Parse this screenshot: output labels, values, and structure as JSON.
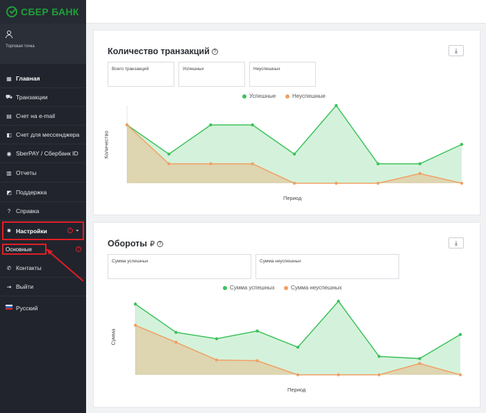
{
  "brand": {
    "logo_text": "СБЕР БАНК",
    "accent": "#21a038",
    "alert": "#e31e24"
  },
  "profile": {
    "label": "Торговая точка"
  },
  "nav": [
    {
      "label": "Главная",
      "icon": "grid-icon"
    },
    {
      "label": "Транзакции",
      "icon": "cart-icon"
    },
    {
      "label": "Счет на e-mail",
      "icon": "email-icon"
    },
    {
      "label": "Счет для мессенджера",
      "icon": "messenger-icon"
    },
    {
      "label": "SberPAY / Сбербанк ID",
      "icon": "sber-icon"
    },
    {
      "label": "Отчеты",
      "icon": "report-icon"
    },
    {
      "label": "Поддержка",
      "icon": "support-icon"
    },
    {
      "label": "Справка",
      "icon": "help-icon"
    },
    {
      "label": "Настройки",
      "icon": "gear-icon"
    },
    {
      "label": "Контакты",
      "icon": "phone-icon"
    },
    {
      "label": "Выйти",
      "icon": "logout-icon"
    },
    {
      "label": "Русский",
      "icon": "flag-icon"
    }
  ],
  "settings_sub": {
    "label": "Основные"
  },
  "card1": {
    "title": "Количество транзакций",
    "stats": [
      "Всего транзакций",
      "Успешных",
      "Неуспешных"
    ]
  },
  "card2": {
    "title": "Обороты",
    "currency": "₽",
    "stats": [
      "Сумма успешных",
      "Сумма неуспешных"
    ]
  },
  "chart_data": [
    {
      "type": "area",
      "xlabel": "Период",
      "ylabel": "Количество",
      "series": [
        {
          "name": "Успешные",
          "color": "#3cc25b",
          "values": [
            6,
            3,
            6,
            6,
            3,
            8,
            2,
            2,
            4
          ]
        },
        {
          "name": "Неуспешные",
          "color": "#f0a063",
          "values": [
            6,
            2,
            2,
            2,
            0,
            0,
            0,
            1,
            0
          ]
        }
      ],
      "ylim": [
        0,
        8
      ]
    },
    {
      "type": "area",
      "xlabel": "Период",
      "ylabel": "Сумма",
      "series": [
        {
          "name": "Сумма успешных",
          "color": "#3cc25b",
          "values": [
            100,
            60,
            51,
            62,
            39,
            104,
            26,
            23,
            57
          ]
        },
        {
          "name": "Сумма неуспешных",
          "color": "#f0a063",
          "values": [
            70,
            46,
            21,
            20,
            0,
            0,
            0,
            16,
            0
          ]
        }
      ],
      "ylim": [
        0,
        104
      ]
    }
  ]
}
